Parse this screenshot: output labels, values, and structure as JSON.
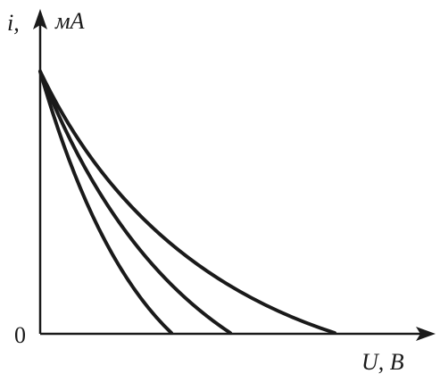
{
  "axes": {
    "y_symbol": "i,",
    "y_unit": "мА",
    "x_label": "U, В",
    "origin": "0"
  }
}
